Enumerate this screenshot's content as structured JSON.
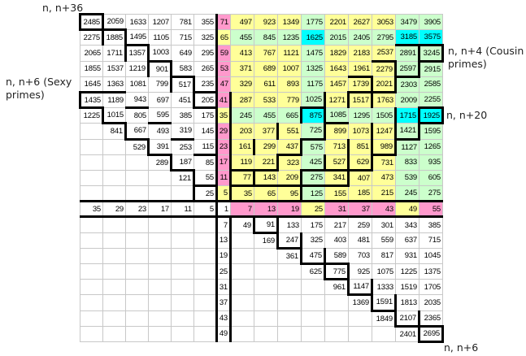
{
  "labels": {
    "top_left": "n, n+36",
    "left": "n, n+6 (Sexy primes)",
    "right_upper": "n, n+4 (Cousin primes)",
    "right_middle": "n, n+20",
    "bottom_right": "n, n+6"
  },
  "grid": {
    "rows": [
      [
        "2485",
        "2059",
        "1633",
        "1207",
        "781",
        "355",
        "71",
        "497",
        "923",
        "1349",
        "1775",
        "2201",
        "2627",
        "3053",
        "3479",
        "3905"
      ],
      [
        "2275",
        "1885",
        "1495",
        "1105",
        "715",
        "325",
        "65",
        "455",
        "845",
        "1235",
        "1625",
        "2015",
        "2405",
        "2795",
        "3185",
        "3575"
      ],
      [
        "2065",
        "1711",
        "1357",
        "1003",
        "649",
        "295",
        "59",
        "413",
        "767",
        "1121",
        "1475",
        "1829",
        "2183",
        "2537",
        "2891",
        "3245"
      ],
      [
        "1855",
        "1537",
        "1219",
        "901",
        "583",
        "265",
        "53",
        "371",
        "689",
        "1007",
        "1325",
        "1643",
        "1961",
        "2279",
        "2597",
        "2915"
      ],
      [
        "1645",
        "1363",
        "1081",
        "799",
        "517",
        "235",
        "47",
        "329",
        "611",
        "893",
        "1175",
        "1457",
        "1739",
        "2021",
        "2303",
        "2585"
      ],
      [
        "1435",
        "1189",
        "943",
        "697",
        "451",
        "205",
        "41",
        "287",
        "533",
        "779",
        "1025",
        "1271",
        "1517",
        "1763",
        "2009",
        "2255"
      ],
      [
        "1225",
        "1015",
        "805",
        "595",
        "385",
        "175",
        "35",
        "245",
        "455",
        "665",
        "875",
        "1085",
        "1295",
        "1505",
        "1715",
        "1925"
      ],
      [
        "",
        "841",
        "667",
        "493",
        "319",
        "145",
        "29",
        "203",
        "377",
        "551",
        "725",
        "899",
        "1073",
        "1247",
        "1421",
        "1595"
      ],
      [
        "",
        "",
        "529",
        "391",
        "253",
        "115",
        "23",
        "161",
        "299",
        "437",
        "575",
        "713",
        "851",
        "989",
        "1127",
        "1265"
      ],
      [
        "",
        "",
        "",
        "289",
        "187",
        "85",
        "17",
        "119",
        "221",
        "323",
        "425",
        "527",
        "629",
        "731",
        "833",
        "935"
      ],
      [
        "",
        "",
        "",
        "",
        "121",
        "55",
        "11",
        "77",
        "143",
        "209",
        "275",
        "341",
        "407",
        "473",
        "539",
        "605"
      ],
      [
        "",
        "",
        "",
        "",
        "",
        "25",
        "5",
        "35",
        "65",
        "95",
        "125",
        "155",
        "185",
        "215",
        "245",
        "275"
      ],
      [
        "35",
        "29",
        "23",
        "17",
        "11",
        "5",
        "1",
        "7",
        "13",
        "19",
        "25",
        "31",
        "37",
        "43",
        "49",
        "55"
      ],
      [
        "",
        "",
        "",
        "",
        "",
        "",
        "7",
        "49",
        "91",
        "133",
        "175",
        "217",
        "259",
        "301",
        "343",
        "385"
      ],
      [
        "",
        "",
        "",
        "",
        "",
        "",
        "13",
        "",
        "169",
        "247",
        "325",
        "403",
        "481",
        "559",
        "637",
        "715"
      ],
      [
        "",
        "",
        "",
        "",
        "",
        "",
        "19",
        "",
        "",
        "361",
        "475",
        "589",
        "703",
        "817",
        "931",
        "1045"
      ],
      [
        "",
        "",
        "",
        "",
        "",
        "",
        "25",
        "",
        "",
        "",
        "625",
        "775",
        "925",
        "1075",
        "1225",
        "1375"
      ],
      [
        "",
        "",
        "",
        "",
        "",
        "",
        "31",
        "",
        "",
        "",
        "",
        "961",
        "1147",
        "1333",
        "1519",
        "1705"
      ],
      [
        "",
        "",
        "",
        "",
        "",
        "",
        "37",
        "",
        "",
        "",
        "",
        "",
        "1369",
        "1591",
        "1813",
        "2035"
      ],
      [
        "",
        "",
        "",
        "",
        "",
        "",
        "43",
        "",
        "",
        "",
        "",
        "",
        "",
        "1849",
        "2107",
        "2365"
      ],
      [
        "",
        "",
        "",
        "",
        "",
        "",
        "49",
        "",
        "",
        "",
        "",
        "",
        "",
        "",
        "2401",
        "2695"
      ]
    ]
  },
  "colors": {
    "yellow": "#ffff99",
    "pink": "#ff99cc",
    "green": "#ccffcc",
    "cyan": "#00ffff"
  }
}
